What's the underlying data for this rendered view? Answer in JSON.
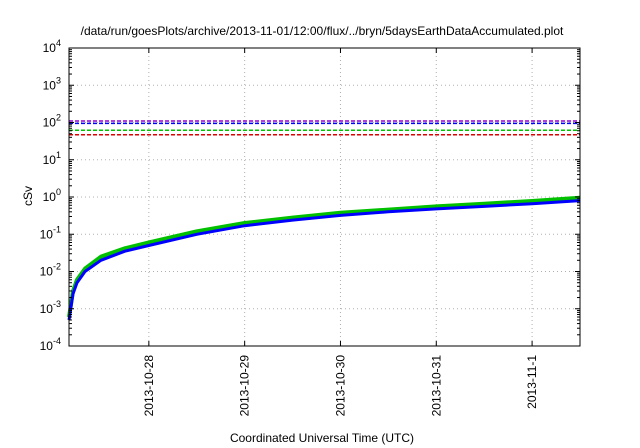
{
  "chart_data": {
    "type": "line",
    "title": "/data/run/goesPlots/archive/2013-11-01/12:00/flux/../bryn/5daysEarthDataAccumulated.plot",
    "xlabel": "Coordinated Universal Time (UTC)",
    "ylabel": "cSv",
    "y_scale": "log",
    "ylim": [
      0.0001,
      10000
    ],
    "xlim": [
      "2013-10-27T04:00",
      "2013-11-01T12:00"
    ],
    "grid": true,
    "x_ticks": [
      "2013-10-28",
      "2013-10-29",
      "2013-10-30",
      "2013-10-31",
      "2013-11-1"
    ],
    "y_ticks": [
      {
        "value": 0.0001,
        "base": "10",
        "exp": "-4"
      },
      {
        "value": 0.001,
        "base": "10",
        "exp": "-3"
      },
      {
        "value": 0.01,
        "base": "10",
        "exp": "-2"
      },
      {
        "value": 0.1,
        "base": "10",
        "exp": "-1"
      },
      {
        "value": 1,
        "base": "10",
        "exp": "0"
      },
      {
        "value": 10,
        "base": "10",
        "exp": "1"
      },
      {
        "value": 100,
        "base": "10",
        "exp": "2"
      },
      {
        "value": 1000,
        "base": "10",
        "exp": "3"
      },
      {
        "value": 10000,
        "base": "10",
        "exp": "4"
      }
    ],
    "thresholds": [
      {
        "value": 110,
        "color": "#9400d3"
      },
      {
        "value": 95,
        "color": "#0000ff"
      },
      {
        "value": 62,
        "color": "#00c000"
      },
      {
        "value": 47,
        "color": "#e00000"
      }
    ],
    "series": [
      {
        "color": "#00c000",
        "x": [
          "2013-10-27T04:00",
          "2013-10-27T05:00",
          "2013-10-27T06:00",
          "2013-10-27T08:00",
          "2013-10-27T12:00",
          "2013-10-27T18:00",
          "2013-10-28T00:00",
          "2013-10-28T12:00",
          "2013-10-29T00:00",
          "2013-10-29T12:00",
          "2013-10-30T00:00",
          "2013-10-30T12:00",
          "2013-10-31T00:00",
          "2013-10-31T12:00",
          "2013-11-01T00:00",
          "2013-11-01T12:00"
        ],
        "y": [
          0.0006,
          0.003,
          0.006,
          0.012,
          0.025,
          0.042,
          0.06,
          0.12,
          0.2,
          0.28,
          0.38,
          0.46,
          0.56,
          0.66,
          0.78,
          0.95
        ]
      },
      {
        "color": "#0000ff",
        "x": [
          "2013-10-27T04:00",
          "2013-10-27T05:00",
          "2013-10-27T06:00",
          "2013-10-27T08:00",
          "2013-10-27T12:00",
          "2013-10-27T18:00",
          "2013-10-28T00:00",
          "2013-10-28T12:00",
          "2013-10-29T00:00",
          "2013-10-29T12:00",
          "2013-10-30T00:00",
          "2013-10-30T12:00",
          "2013-10-31T00:00",
          "2013-10-31T12:00",
          "2013-11-01T00:00",
          "2013-11-01T12:00"
        ],
        "y": [
          0.0005,
          0.0025,
          0.005,
          0.01,
          0.02,
          0.035,
          0.05,
          0.1,
          0.17,
          0.24,
          0.32,
          0.4,
          0.48,
          0.56,
          0.66,
          0.8
        ]
      }
    ]
  }
}
